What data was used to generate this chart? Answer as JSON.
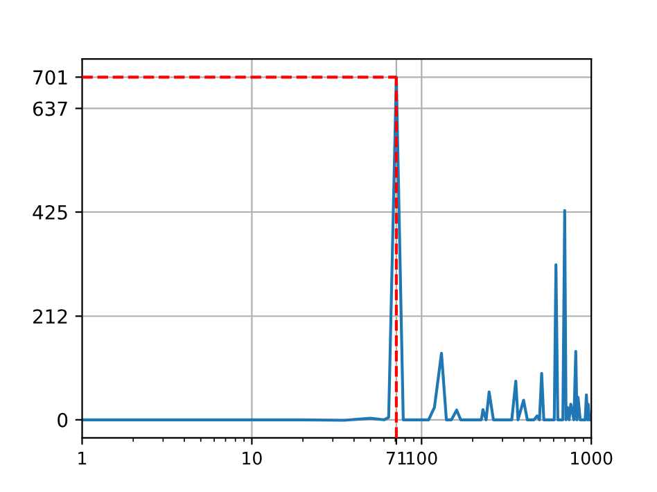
{
  "chart_data": {
    "type": "line",
    "log": "x",
    "x": [
      1,
      5,
      10,
      20,
      35,
      50,
      60,
      64,
      71,
      78,
      90,
      100,
      110,
      119,
      131,
      140,
      150,
      161,
      170,
      200,
      225,
      230,
      240,
      250,
      265,
      300,
      340,
      359,
      370,
      399,
      420,
      460,
      479,
      495,
      510,
      525,
      580,
      605,
      619,
      635,
      680,
      697,
      710,
      724,
      740,
      757,
      790,
      810,
      823,
      836,
      860,
      920,
      936,
      950,
      959,
      975,
      1000
    ],
    "series": [
      {
        "color": "#1f77b4",
        "values": [
          0,
          0,
          0,
          0,
          -1,
          3,
          0,
          5,
          701,
          0,
          0,
          0,
          0,
          25,
          136,
          0,
          0,
          20,
          0,
          0,
          0,
          21,
          0,
          57,
          0,
          0,
          0,
          79,
          0,
          40,
          0,
          0,
          8,
          0,
          95,
          0,
          0,
          0,
          317,
          0,
          0,
          428,
          0,
          25,
          0,
          32,
          0,
          140,
          0,
          46,
          0,
          0,
          51,
          0,
          32,
          0,
          0
        ]
      }
    ],
    "xlim": [
      1,
      1000
    ],
    "ylim": [
      -37,
      738
    ],
    "xticks": [
      1,
      10,
      71,
      100,
      1000
    ],
    "yticks": [
      0,
      212,
      425,
      637,
      701
    ],
    "grid": true,
    "marker": "none",
    "line_style": "solid",
    "ref_lines": [
      {
        "axis": "y",
        "value": 701,
        "color": "#ff0000",
        "line_style": "dashed"
      },
      {
        "axis": "x",
        "value": 71,
        "color": "#ff0000",
        "line_style": "dashed"
      }
    ]
  }
}
